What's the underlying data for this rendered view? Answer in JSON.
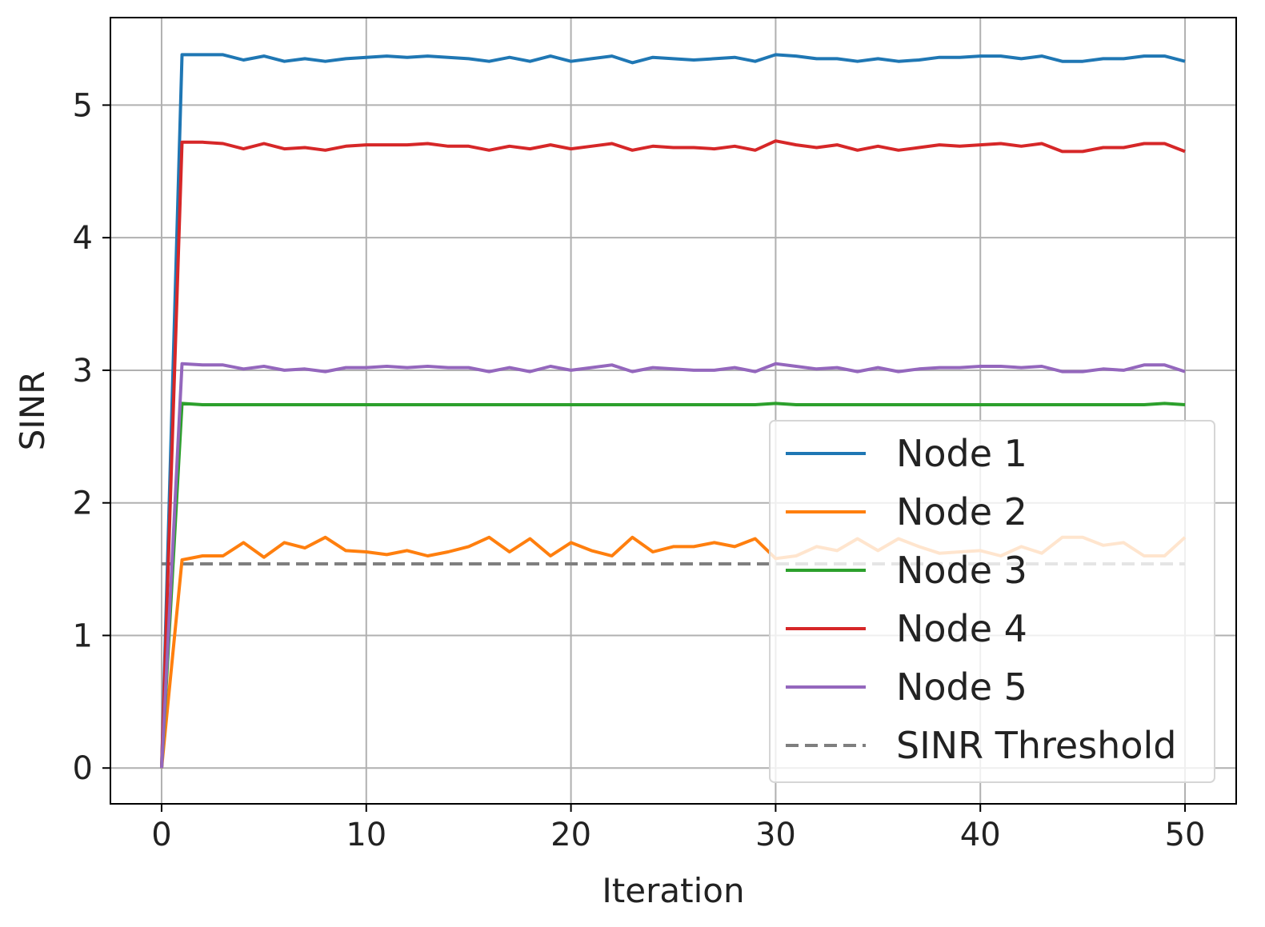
{
  "chart_data": {
    "type": "line",
    "xlabel": "Iteration",
    "ylabel": "SINR",
    "xlim": [
      -2.5,
      52.5
    ],
    "ylim": [
      -0.27,
      5.66
    ],
    "xticks": [
      0,
      10,
      20,
      30,
      40,
      50
    ],
    "yticks": [
      0,
      1,
      2,
      3,
      4,
      5
    ],
    "grid": true,
    "legend_position": "lower-right",
    "x": [
      0,
      1,
      2,
      3,
      4,
      5,
      6,
      7,
      8,
      9,
      10,
      11,
      12,
      13,
      14,
      15,
      16,
      17,
      18,
      19,
      20,
      21,
      22,
      23,
      24,
      25,
      26,
      27,
      28,
      29,
      30,
      31,
      32,
      33,
      34,
      35,
      36,
      37,
      38,
      39,
      40,
      41,
      42,
      43,
      44,
      45,
      46,
      47,
      48,
      49,
      50
    ],
    "series": [
      {
        "name": "Node 1",
        "color": "#1f77b4",
        "style": "solid",
        "values": [
          0,
          5.38,
          5.38,
          5.38,
          5.34,
          5.37,
          5.33,
          5.35,
          5.33,
          5.35,
          5.36,
          5.37,
          5.36,
          5.37,
          5.36,
          5.35,
          5.33,
          5.36,
          5.33,
          5.37,
          5.33,
          5.35,
          5.37,
          5.32,
          5.36,
          5.35,
          5.34,
          5.35,
          5.36,
          5.33,
          5.38,
          5.37,
          5.35,
          5.35,
          5.33,
          5.35,
          5.33,
          5.34,
          5.36,
          5.36,
          5.37,
          5.37,
          5.35,
          5.37,
          5.33,
          5.33,
          5.35,
          5.35,
          5.37,
          5.37,
          5.33
        ]
      },
      {
        "name": "Node 2",
        "color": "#ff7f0e",
        "style": "solid",
        "values": [
          0,
          1.57,
          1.6,
          1.6,
          1.7,
          1.59,
          1.7,
          1.66,
          1.74,
          1.64,
          1.63,
          1.61,
          1.64,
          1.6,
          1.63,
          1.67,
          1.74,
          1.63,
          1.73,
          1.6,
          1.7,
          1.64,
          1.6,
          1.74,
          1.63,
          1.67,
          1.67,
          1.7,
          1.67,
          1.73,
          1.58,
          1.6,
          1.67,
          1.64,
          1.73,
          1.64,
          1.73,
          1.67,
          1.62,
          1.63,
          1.64,
          1.6,
          1.67,
          1.62,
          1.74,
          1.74,
          1.68,
          1.7,
          1.6,
          1.6,
          1.74
        ]
      },
      {
        "name": "Node 3",
        "color": "#2ca02c",
        "style": "solid",
        "values": [
          0,
          2.75,
          2.74,
          2.74,
          2.74,
          2.74,
          2.74,
          2.74,
          2.74,
          2.74,
          2.74,
          2.74,
          2.74,
          2.74,
          2.74,
          2.74,
          2.74,
          2.74,
          2.74,
          2.74,
          2.74,
          2.74,
          2.74,
          2.74,
          2.74,
          2.74,
          2.74,
          2.74,
          2.74,
          2.74,
          2.75,
          2.74,
          2.74,
          2.74,
          2.74,
          2.74,
          2.74,
          2.74,
          2.74,
          2.74,
          2.74,
          2.74,
          2.74,
          2.74,
          2.74,
          2.74,
          2.74,
          2.74,
          2.74,
          2.75,
          2.74
        ]
      },
      {
        "name": "Node 4",
        "color": "#d62728",
        "style": "solid",
        "values": [
          0,
          4.72,
          4.72,
          4.71,
          4.67,
          4.71,
          4.67,
          4.68,
          4.66,
          4.69,
          4.7,
          4.7,
          4.7,
          4.71,
          4.69,
          4.69,
          4.66,
          4.69,
          4.67,
          4.7,
          4.67,
          4.69,
          4.71,
          4.66,
          4.69,
          4.68,
          4.68,
          4.67,
          4.69,
          4.66,
          4.73,
          4.7,
          4.68,
          4.7,
          4.66,
          4.69,
          4.66,
          4.68,
          4.7,
          4.69,
          4.7,
          4.71,
          4.69,
          4.71,
          4.65,
          4.65,
          4.68,
          4.68,
          4.71,
          4.71,
          4.65
        ]
      },
      {
        "name": "Node 5",
        "color": "#9467bd",
        "style": "solid",
        "values": [
          0,
          3.05,
          3.04,
          3.04,
          3.01,
          3.03,
          3.0,
          3.01,
          2.99,
          3.02,
          3.02,
          3.03,
          3.02,
          3.03,
          3.02,
          3.02,
          2.99,
          3.02,
          2.99,
          3.03,
          3.0,
          3.02,
          3.04,
          2.99,
          3.02,
          3.01,
          3.0,
          3.0,
          3.02,
          2.99,
          3.05,
          3.03,
          3.01,
          3.02,
          2.99,
          3.02,
          2.99,
          3.01,
          3.02,
          3.02,
          3.03,
          3.03,
          3.02,
          3.03,
          2.99,
          2.99,
          3.01,
          3.0,
          3.04,
          3.04,
          2.99
        ]
      },
      {
        "name": "SINR Threshold",
        "color": "#7f7f7f",
        "style": "dashed",
        "values": [
          1.54,
          1.54,
          1.54,
          1.54,
          1.54,
          1.54,
          1.54,
          1.54,
          1.54,
          1.54,
          1.54,
          1.54,
          1.54,
          1.54,
          1.54,
          1.54,
          1.54,
          1.54,
          1.54,
          1.54,
          1.54,
          1.54,
          1.54,
          1.54,
          1.54,
          1.54,
          1.54,
          1.54,
          1.54,
          1.54,
          1.54,
          1.54,
          1.54,
          1.54,
          1.54,
          1.54,
          1.54,
          1.54,
          1.54,
          1.54,
          1.54,
          1.54,
          1.54,
          1.54,
          1.54,
          1.54,
          1.54,
          1.54,
          1.54,
          1.54,
          1.54
        ]
      }
    ]
  }
}
